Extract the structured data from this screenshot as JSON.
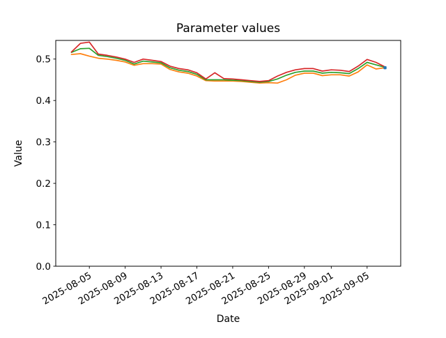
{
  "figure": {
    "background": "#ffffff",
    "frame_color": "#000000"
  },
  "chart_data": {
    "type": "line",
    "title": "Parameter values",
    "xlabel": "Date",
    "ylabel": "Value",
    "grid": false,
    "legend": false,
    "ylim": [
      0.0,
      0.545
    ],
    "xlim": [
      "2025-08-01T06:00:00Z",
      "2025-09-08T18:00:00Z"
    ],
    "yticks": [
      0.0,
      0.1,
      0.2,
      0.3,
      0.4,
      0.5
    ],
    "ytick_labels": [
      "0.0",
      "0.1",
      "0.2",
      "0.3",
      "0.4",
      "0.5"
    ],
    "xtick_labels": [
      "2025-08-05",
      "2025-08-09",
      "2025-08-13",
      "2025-08-17",
      "2025-08-21",
      "2025-08-25",
      "2025-08-29",
      "2025-09-01",
      "2025-09-05"
    ],
    "x": [
      "2025-08-03",
      "2025-08-04",
      "2025-08-05",
      "2025-08-06",
      "2025-08-07",
      "2025-08-08",
      "2025-08-09",
      "2025-08-10",
      "2025-08-11",
      "2025-08-12",
      "2025-08-13",
      "2025-08-14",
      "2025-08-15",
      "2025-08-16",
      "2025-08-17",
      "2025-08-18",
      "2025-08-19",
      "2025-08-20",
      "2025-08-21",
      "2025-08-22",
      "2025-08-23",
      "2025-08-24",
      "2025-08-25",
      "2025-08-26",
      "2025-08-27",
      "2025-08-28",
      "2025-08-29",
      "2025-08-30",
      "2025-08-31",
      "2025-09-01",
      "2025-09-02",
      "2025-09-03",
      "2025-09-04",
      "2025-09-05",
      "2025-09-06",
      "2025-09-07"
    ],
    "series": [
      {
        "name": "orange",
        "color": "#ff7f0e",
        "values": [
          0.511,
          0.513,
          0.507,
          0.502,
          0.5,
          0.497,
          0.493,
          0.485,
          0.489,
          0.489,
          0.488,
          0.475,
          0.469,
          0.466,
          0.459,
          0.448,
          0.447,
          0.447,
          0.447,
          0.446,
          0.444,
          0.442,
          0.443,
          0.442,
          0.45,
          0.461,
          0.466,
          0.466,
          0.46,
          0.462,
          0.462,
          0.459,
          0.469,
          0.486,
          0.476,
          0.479
        ]
      },
      {
        "name": "green",
        "color": "#2ca02c",
        "values": [
          0.516,
          0.525,
          0.526,
          0.509,
          0.506,
          0.502,
          0.497,
          0.488,
          0.495,
          0.493,
          0.491,
          0.479,
          0.473,
          0.47,
          0.463,
          0.45,
          0.45,
          0.45,
          0.449,
          0.448,
          0.446,
          0.444,
          0.446,
          0.452,
          0.461,
          0.468,
          0.471,
          0.471,
          0.466,
          0.468,
          0.467,
          0.465,
          0.477,
          0.492,
          0.486,
          0.48
        ]
      },
      {
        "name": "red",
        "color": "#d62728",
        "values": [
          0.517,
          0.538,
          0.541,
          0.512,
          0.509,
          0.505,
          0.5,
          0.492,
          0.5,
          0.497,
          0.494,
          0.483,
          0.477,
          0.474,
          0.467,
          0.452,
          0.467,
          0.453,
          0.452,
          0.45,
          0.448,
          0.446,
          0.448,
          0.459,
          0.468,
          0.474,
          0.477,
          0.477,
          0.471,
          0.474,
          0.473,
          0.47,
          0.483,
          0.499,
          0.492,
          0.481
        ]
      }
    ],
    "end_marker": {
      "name": "blue-endpoint",
      "color": "#1f77b4",
      "x": "2025-09-07",
      "value": 0.479
    }
  }
}
